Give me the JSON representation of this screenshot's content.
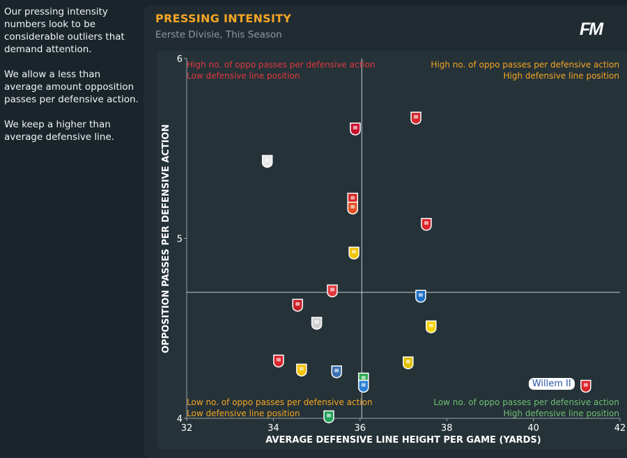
{
  "notes": [
    "Our pressing intensity numbers look to be considerable outliers that demand attention.",
    "We allow a less than average amount opposition passes per defensive action.",
    "We keep a higher than average defensive line."
  ],
  "header": {
    "title": "PRESSING INTENSITY",
    "subtitle": "Eerste Divisie, This Season",
    "logo": "FM"
  },
  "quadrants": {
    "top_left": [
      "High no. of oppo passes per defensive action",
      "Low defensive line position"
    ],
    "top_right": [
      "High no. of oppo passes per defensive action",
      "High defensive line position"
    ],
    "bottom_left": [
      "Low no. of oppo passes per defensive action",
      "Low defensive line position"
    ],
    "bottom_right": [
      "Low no. of oppo passes per defensive action",
      "High defensive line position"
    ]
  },
  "colors": {
    "top_left": "#e0393e",
    "top_right": "#f5a623",
    "bottom_left": "#f5a623",
    "bottom_right": "#6fbf73",
    "accent": "#f5a623"
  },
  "chart_data": {
    "type": "scatter",
    "title": "PRESSING INTENSITY",
    "xlabel": "AVERAGE DEFENSIVE LINE HEIGHT PER GAME (YARDS)",
    "ylabel": "OPPOSITION PASSES PER DEFENSIVE ACTION",
    "xlim": [
      32,
      42
    ],
    "ylim": [
      4,
      6
    ],
    "xticks": [
      "32",
      "34",
      "36",
      "38",
      "40",
      "42"
    ],
    "yticks": [
      "4",
      "5",
      "6"
    ],
    "average": {
      "x": 36.04,
      "y": 4.7
    },
    "highlight_label": "Willem II",
    "points": [
      {
        "x": 37.29,
        "y": 5.67,
        "color": "#d4292f"
      },
      {
        "x": 35.89,
        "y": 5.61,
        "color": "#c8102e"
      },
      {
        "x": 33.86,
        "y": 5.43,
        "color": "#e8e8e8"
      },
      {
        "x": 35.83,
        "y": 5.22,
        "color": "#d62020"
      },
      {
        "x": 35.83,
        "y": 5.17,
        "color": "#e05020"
      },
      {
        "x": 37.53,
        "y": 5.08,
        "color": "#d8262c"
      },
      {
        "x": 35.86,
        "y": 4.92,
        "color": "#f2c400"
      },
      {
        "x": 35.36,
        "y": 4.71,
        "color": "#e03a3e"
      },
      {
        "x": 37.4,
        "y": 4.68,
        "color": "#1c6fc4"
      },
      {
        "x": 34.56,
        "y": 4.63,
        "color": "#c8202a"
      },
      {
        "x": 35.0,
        "y": 4.53,
        "color": "#d0d0d0"
      },
      {
        "x": 37.64,
        "y": 4.51,
        "color": "#f4d300"
      },
      {
        "x": 37.11,
        "y": 4.31,
        "color": "#e0c000"
      },
      {
        "x": 34.12,
        "y": 4.32,
        "color": "#d8262c"
      },
      {
        "x": 34.65,
        "y": 4.27,
        "color": "#f2c400"
      },
      {
        "x": 35.46,
        "y": 4.26,
        "color": "#3a6fb0"
      },
      {
        "x": 36.08,
        "y": 4.22,
        "color": "#2fa84f"
      },
      {
        "x": 36.08,
        "y": 4.18,
        "color": "#2a7fd4"
      },
      {
        "x": 35.28,
        "y": 4.01,
        "color": "#22a05a"
      },
      {
        "x": 41.21,
        "y": 4.18,
        "color": "#d8262c",
        "label": "Willem II"
      }
    ]
  }
}
